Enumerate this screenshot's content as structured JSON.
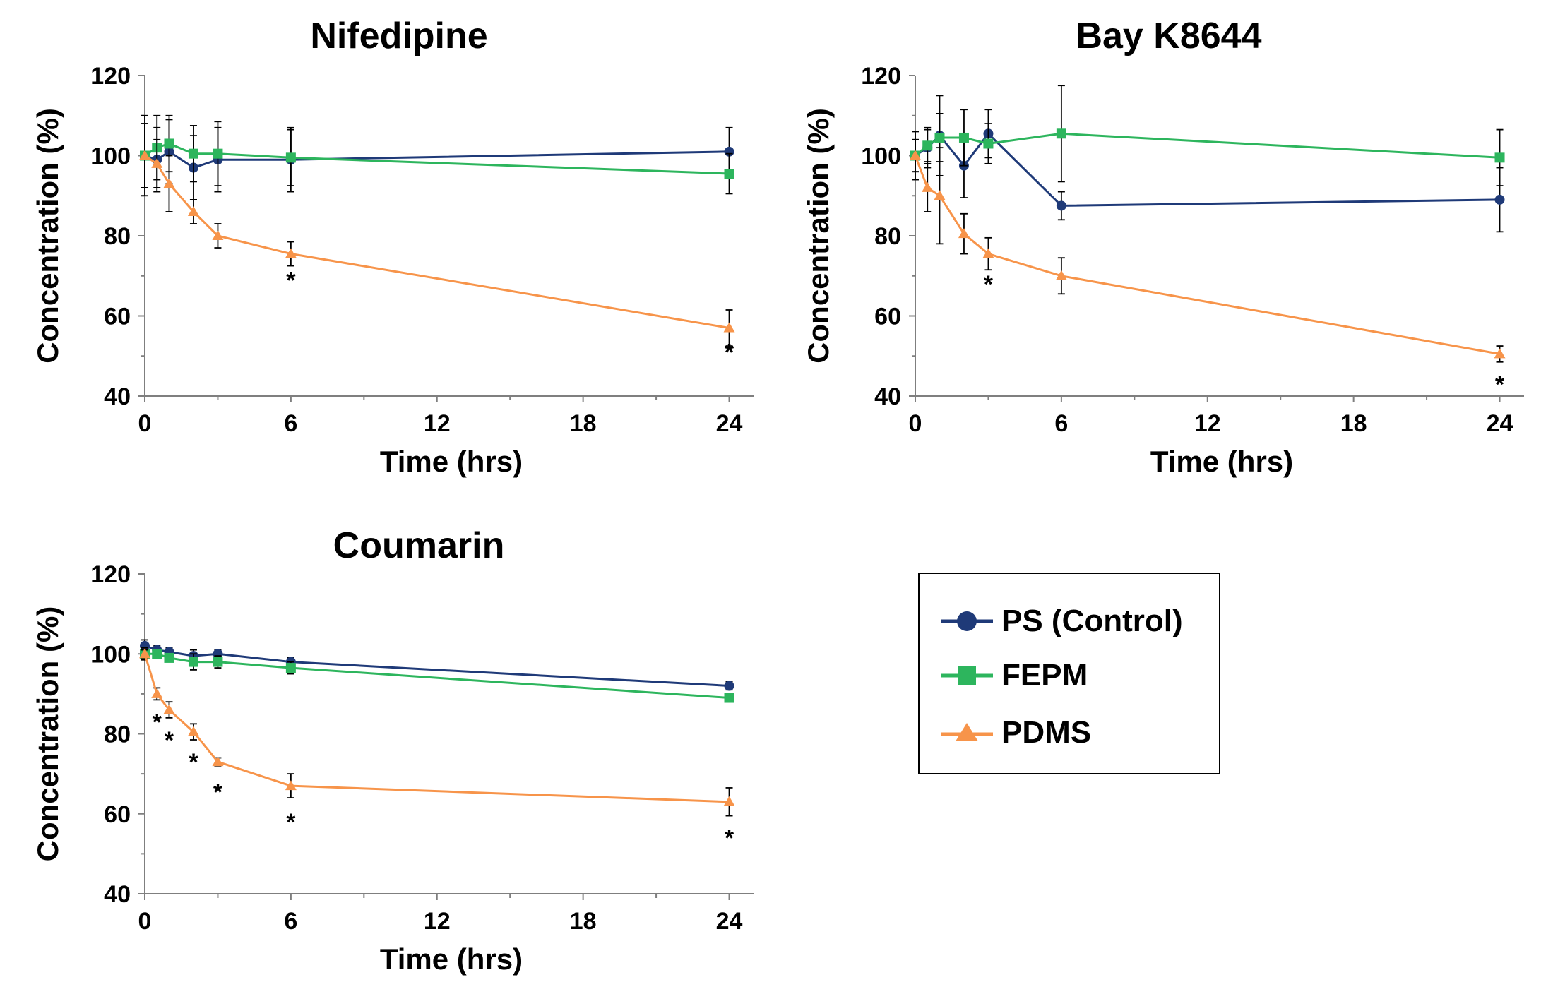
{
  "figure": {
    "series_styles": [
      {
        "name": "PS (Control)",
        "color": "#1f3a78",
        "marker": "circle"
      },
      {
        "name": "FEPM",
        "color": "#2db55d",
        "marker": "square"
      },
      {
        "name": "PDMS",
        "color": "#f7944a",
        "marker": "triangle"
      }
    ]
  },
  "legend": {
    "items": [
      {
        "label": "PS (Control)",
        "color": "#1f3a78",
        "marker": "circle"
      },
      {
        "label": "FEPM",
        "color": "#2db55d",
        "marker": "square"
      },
      {
        "label": "PDMS",
        "color": "#f7944a",
        "marker": "triangle"
      }
    ]
  },
  "chart_data": [
    {
      "type": "line",
      "title": "Nifedipine",
      "xlabel": "Time (hrs)",
      "ylabel": "Concentration (%)",
      "xlim": [
        0,
        25
      ],
      "ylim": [
        40,
        120
      ],
      "xticks": [
        0,
        6,
        12,
        18,
        24
      ],
      "yticks": [
        40,
        60,
        80,
        100,
        120
      ],
      "series": [
        {
          "name": "PS (Control)",
          "x": [
            0,
            0.5,
            1,
            2,
            3,
            6,
            24
          ],
          "values": [
            100,
            99,
            101,
            97,
            99,
            99,
            101
          ],
          "errors": [
            10,
            8,
            8,
            8,
            8,
            8,
            6
          ]
        },
        {
          "name": "FEPM",
          "x": [
            0,
            0.5,
            1,
            2,
            3,
            6,
            24
          ],
          "values": [
            100,
            102,
            103,
            100.5,
            100.5,
            99.5,
            95.5
          ],
          "errors": [
            8,
            8,
            7,
            7,
            8,
            7,
            5
          ]
        },
        {
          "name": "PDMS",
          "x": [
            0,
            0.5,
            1,
            2,
            3,
            6,
            24
          ],
          "values": [
            100,
            98,
            93,
            86,
            80,
            75.5,
            57
          ],
          "errors": [
            8,
            6,
            7,
            3,
            3,
            3,
            4.5
          ]
        }
      ],
      "annotations": [
        {
          "text": "*",
          "x": 6,
          "y": 69
        },
        {
          "text": "*",
          "x": 24,
          "y": 51
        }
      ]
    },
    {
      "type": "line",
      "title": "Bay K8644",
      "xlabel": "Time (hrs)",
      "ylabel": "Concentration (%)",
      "xlim": [
        0,
        25
      ],
      "ylim": [
        40,
        120
      ],
      "xticks": [
        0,
        6,
        12,
        18,
        24
      ],
      "yticks": [
        40,
        60,
        80,
        100,
        120
      ],
      "series": [
        {
          "name": "PS (Control)",
          "x": [
            0,
            0.5,
            1,
            2,
            3,
            6,
            24
          ],
          "values": [
            100,
            102,
            105,
            97.5,
            105.5,
            87.5,
            89
          ],
          "errors": [
            4,
            5,
            10,
            8,
            6,
            3.5,
            8
          ]
        },
        {
          "name": "FEPM",
          "x": [
            0,
            0.5,
            1,
            2,
            3,
            6,
            24
          ],
          "values": [
            100,
            102.5,
            104.5,
            104.5,
            103,
            105.5,
            99.5
          ],
          "errors": [
            4,
            4,
            6,
            7,
            5,
            12,
            7
          ]
        },
        {
          "name": "PDMS",
          "x": [
            0,
            0.5,
            1,
            2,
            3,
            6,
            24
          ],
          "values": [
            100,
            92,
            90,
            80.5,
            75.5,
            70,
            50.5
          ],
          "errors": [
            6,
            6,
            12,
            5,
            4,
            4.5,
            2
          ]
        }
      ],
      "annotations": [
        {
          "text": "*",
          "x": 3,
          "y": 68
        },
        {
          "text": "*",
          "x": 24,
          "y": 43
        }
      ]
    },
    {
      "type": "line",
      "title": "Coumarin",
      "xlabel": "Time (hrs)",
      "ylabel": "Concentration (%)",
      "xlim": [
        0,
        25
      ],
      "ylim": [
        40,
        120
      ],
      "xticks": [
        0,
        6,
        12,
        18,
        24
      ],
      "yticks": [
        40,
        60,
        80,
        100,
        120
      ],
      "series": [
        {
          "name": "PS (Control)",
          "x": [
            0,
            0.5,
            1,
            2,
            3,
            6,
            24
          ],
          "values": [
            102,
            101,
            100.5,
            99.5,
            100,
            98,
            92
          ],
          "errors": [
            1.5,
            1,
            1,
            1.5,
            1,
            1,
            1
          ]
        },
        {
          "name": "FEPM",
          "x": [
            0,
            0.5,
            1,
            2,
            3,
            6,
            24
          ],
          "values": [
            100,
            100,
            99,
            98,
            98,
            96.5,
            89
          ],
          "errors": [
            1.5,
            1,
            1,
            2,
            1.5,
            1.5,
            1
          ]
        },
        {
          "name": "PDMS",
          "x": [
            0,
            0.5,
            1,
            2,
            3,
            6,
            24
          ],
          "values": [
            100,
            90,
            86,
            80.5,
            73,
            67,
            63
          ],
          "errors": [
            1,
            1.5,
            2,
            2,
            1,
            3,
            3.5
          ]
        }
      ],
      "annotations": [
        {
          "text": "*",
          "x": 0.5,
          "y": 83
        },
        {
          "text": "*",
          "x": 1,
          "y": 78.5
        },
        {
          "text": "*",
          "x": 2,
          "y": 73
        },
        {
          "text": "*",
          "x": 3,
          "y": 65.5
        },
        {
          "text": "*",
          "x": 6,
          "y": 58
        },
        {
          "text": "*",
          "x": 24,
          "y": 54
        }
      ]
    }
  ]
}
